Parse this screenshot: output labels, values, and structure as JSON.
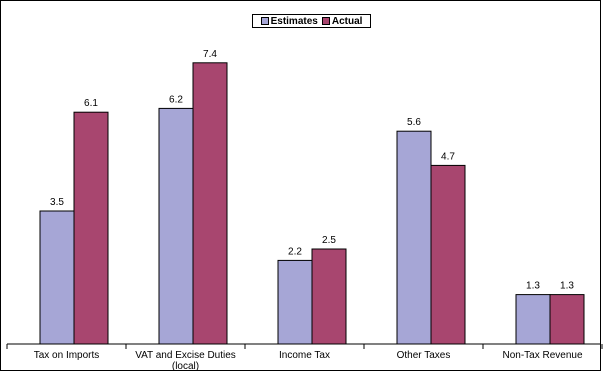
{
  "chart_data": {
    "type": "bar",
    "title": "",
    "xlabel": "",
    "ylabel": "",
    "ylim": [
      0,
      8
    ],
    "grid": false,
    "legend_position": "top-center",
    "categories": [
      "Tax on Imports",
      "VAT and Excise Duties (local)",
      "Income Tax",
      "Other Taxes",
      "Non-Tax Revenue"
    ],
    "category_lines": [
      [
        "Tax on Imports"
      ],
      [
        "VAT and Excise Duties",
        "(local)"
      ],
      [
        "Income Tax"
      ],
      [
        "Other Taxes"
      ],
      [
        "Non-Tax Revenue"
      ]
    ],
    "series": [
      {
        "name": "Estimates",
        "color": "#a6a6d6",
        "values": [
          3.5,
          6.2,
          2.2,
          5.6,
          1.3
        ],
        "labels": [
          "3.5",
          "6.2",
          "2.2",
          "5.6",
          "1.3"
        ]
      },
      {
        "name": "Actual",
        "color": "#a8466f",
        "values": [
          6.1,
          7.4,
          2.5,
          4.7,
          1.3
        ],
        "labels": [
          "6.1",
          "7.4",
          "2.5",
          "4.7",
          "1.3"
        ]
      }
    ]
  }
}
